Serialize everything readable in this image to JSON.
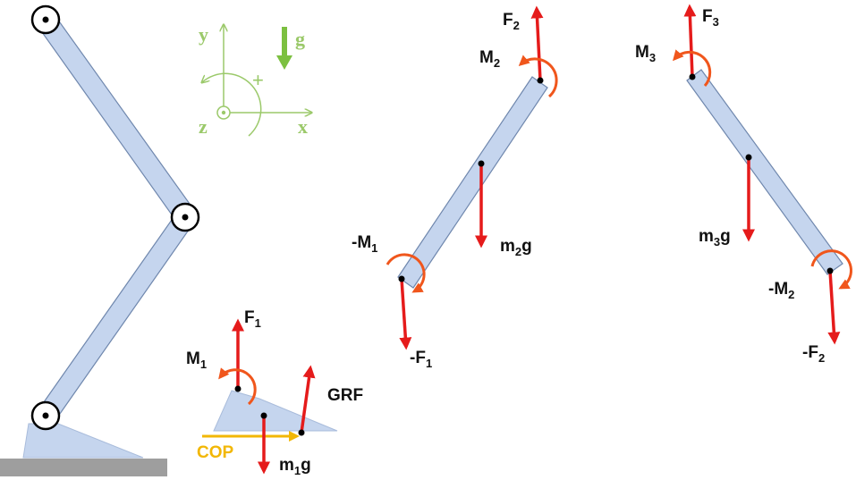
{
  "colors": {
    "segment_fill": "#c5d5ee",
    "segment_stroke": "#6f87ad",
    "force_arrow": "#e51b1b",
    "moment_arrow": "#f0561c",
    "axes": "#9bc96a",
    "cop": "#f2b705",
    "ground": "#9e9e9e",
    "text": "#111111"
  },
  "axes": {
    "y_label": "y",
    "x_label": "x",
    "z_label": "z",
    "g_label": "g",
    "plus_label": "+"
  },
  "foot": {
    "f1": {
      "base": "F",
      "sub": "1"
    },
    "m1": {
      "base": "M",
      "sub": "1"
    },
    "grf": "GRF",
    "cop": "COP",
    "weight": {
      "pre": "m",
      "sub": "1",
      "post": "g"
    }
  },
  "shank": {
    "f2": {
      "base": "F",
      "sub": "2"
    },
    "m2": {
      "base": "M",
      "sub": "2"
    },
    "neg_m1": {
      "base": "-M",
      "sub": "1"
    },
    "neg_f1": {
      "base": "-F",
      "sub": "1"
    },
    "weight": {
      "pre": "m",
      "sub": "2",
      "post": "g"
    }
  },
  "thigh": {
    "f3": {
      "base": "F",
      "sub": "3"
    },
    "m3": {
      "base": "M",
      "sub": "3"
    },
    "neg_m2": {
      "base": "-M",
      "sub": "2"
    },
    "neg_f2": {
      "base": "-F",
      "sub": "2"
    },
    "weight": {
      "pre": "m",
      "sub": "3",
      "post": "g"
    }
  }
}
